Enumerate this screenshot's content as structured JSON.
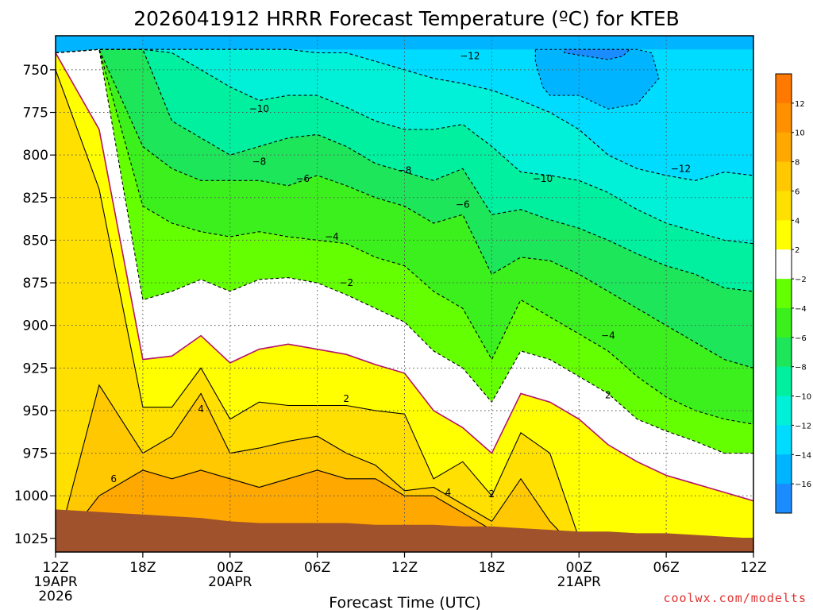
{
  "colors": {
    "c_neg16": "#1a8cff",
    "c_neg14": "#00b4ff",
    "c_neg12": "#00dcff",
    "c_neg10": "#00f0d8",
    "c_neg8": "#00f0a0",
    "c_neg6": "#1ee65a",
    "c_neg4": "#3cf01e",
    "c_neg2": "#64ff00",
    "c_0": "#ffffff",
    "c_2": "#ffff00",
    "c_4": "#ffe000",
    "c_6": "#ffc800",
    "c_8": "#ffa800",
    "c_10": "#ff9000",
    "c_12": "#ff7800",
    "ground": "#a0522d",
    "freezing_line": "#b4146e"
  },
  "chart_data": {
    "type": "heatmap",
    "title": "2026041912 HRRR Forecast Temperature (ºC) for KTEB",
    "xlabel": "Forecast Time (UTC)",
    "ylabel": "",
    "x_range_hours": [
      0,
      48
    ],
    "y_range_hpa": [
      730,
      1033
    ],
    "y_inverted": true,
    "y_ticks": [
      "750",
      "775",
      "800",
      "825",
      "850",
      "875",
      "900",
      "925",
      "950",
      "975",
      "1000",
      "1025"
    ],
    "x_ticks": [
      {
        "hour": 0,
        "label": "12Z",
        "sub1": "19APR",
        "sub2": "2026"
      },
      {
        "hour": 6,
        "label": "18Z",
        "sub1": "",
        "sub2": ""
      },
      {
        "hour": 12,
        "label": "00Z",
        "sub1": "20APR",
        "sub2": ""
      },
      {
        "hour": 18,
        "label": "06Z",
        "sub1": "",
        "sub2": ""
      },
      {
        "hour": 24,
        "label": "12Z",
        "sub1": "",
        "sub2": ""
      },
      {
        "hour": 30,
        "label": "18Z",
        "sub1": "",
        "sub2": ""
      },
      {
        "hour": 36,
        "label": "00Z",
        "sub1": "21APR",
        "sub2": ""
      },
      {
        "hour": 42,
        "label": "06Z",
        "sub1": "",
        "sub2": ""
      },
      {
        "hour": 48,
        "label": "12Z",
        "sub1": "",
        "sub2": ""
      }
    ],
    "colorbar": {
      "ticks": [
        "12",
        "10",
        "8",
        "6",
        "4",
        "2",
        "-2",
        "-4",
        "-6",
        "-8",
        "-10",
        "-12",
        "-14",
        "-16"
      ],
      "bands": [
        "c_12",
        "c_10",
        "c_8",
        "c_6",
        "c_4",
        "c_2",
        "c_0",
        "c_neg2",
        "c_neg4",
        "c_neg6",
        "c_neg8",
        "c_neg10",
        "c_neg12",
        "c_neg14",
        "c_neg16"
      ]
    },
    "isotherm_levels_hpa": {
      "hours": [
        0,
        3,
        6,
        8,
        10,
        12,
        14,
        16,
        18,
        20,
        22,
        24,
        26,
        28,
        30,
        32,
        34,
        36,
        38,
        40,
        42,
        44,
        46,
        48
      ],
      "p_6": [
        1033,
        1000,
        985,
        990,
        985,
        990,
        995,
        990,
        985,
        990,
        990,
        1000,
        1000,
        1010,
        1020,
        1025,
        1033,
        1033,
        1033,
        1033,
        1033,
        1033,
        1033,
        1033
      ],
      "p_4": [
        1033,
        935,
        975,
        965,
        940,
        975,
        972,
        968,
        965,
        975,
        982,
        997,
        995,
        1005,
        1015,
        990,
        1015,
        1033,
        1033,
        1033,
        1033,
        1033,
        1033,
        1033
      ],
      "p_2": [
        750,
        820,
        948,
        948,
        925,
        955,
        945,
        947,
        947,
        947,
        950,
        952,
        990,
        980,
        1000,
        963,
        975,
        1025,
        1025,
        1025,
        1025,
        1025,
        1025,
        1025
      ],
      "p_0": [
        740,
        785,
        920,
        918,
        906,
        922,
        914,
        911,
        914,
        917,
        923,
        928,
        950,
        960,
        975,
        940,
        945,
        955,
        970,
        980,
        988,
        993,
        998,
        1003
      ],
      "p_neg2": [
        740,
        738,
        885,
        880,
        873,
        880,
        873,
        872,
        875,
        882,
        890,
        898,
        915,
        925,
        945,
        915,
        920,
        930,
        940,
        955,
        962,
        968,
        975,
        975
      ],
      "p_neg4": [
        740,
        738,
        830,
        840,
        845,
        848,
        845,
        848,
        850,
        852,
        860,
        865,
        880,
        890,
        920,
        885,
        895,
        905,
        915,
        930,
        942,
        950,
        955,
        958
      ],
      "p_neg6": [
        740,
        738,
        795,
        808,
        815,
        815,
        815,
        818,
        812,
        818,
        825,
        830,
        840,
        835,
        870,
        860,
        862,
        870,
        880,
        890,
        900,
        910,
        920,
        925
      ],
      "p_neg8": [
        740,
        738,
        738,
        780,
        790,
        800,
        795,
        790,
        788,
        795,
        805,
        810,
        815,
        808,
        835,
        832,
        838,
        843,
        850,
        858,
        865,
        870,
        878,
        880
      ],
      "p_neg10": [
        740,
        738,
        738,
        740,
        750,
        760,
        768,
        765,
        765,
        772,
        780,
        785,
        785,
        782,
        795,
        810,
        812,
        815,
        822,
        832,
        840,
        845,
        850,
        852
      ],
      "p_neg12": [
        740,
        738,
        738,
        738,
        738,
        738,
        738,
        738,
        740,
        740,
        745,
        750,
        755,
        758,
        762,
        768,
        775,
        785,
        800,
        808,
        812,
        815,
        810,
        812
      ],
      "p_neg14": [
        740,
        738,
        738,
        738,
        738,
        738,
        738,
        738,
        738,
        738,
        738,
        738,
        738,
        738,
        738,
        738,
        738,
        738,
        738,
        738,
        738,
        738,
        738,
        738
      ]
    },
    "cold_pocket_neg14": {
      "hours": [
        33,
        34,
        36,
        38,
        40,
        41,
        41.5,
        40,
        38,
        36,
        34,
        33.5,
        33
      ],
      "p": [
        738,
        738,
        738,
        738,
        738,
        740,
        755,
        770,
        773,
        765,
        765,
        760,
        745
      ]
    },
    "cold_pocket_neg16": {
      "hours": [
        35,
        36,
        38,
        39.5,
        39,
        38,
        36.5,
        35
      ],
      "p": [
        738,
        738,
        738,
        738,
        742,
        744,
        742,
        740
      ]
    },
    "ground_surface_hpa": {
      "hours": [
        0,
        2,
        4,
        6,
        8,
        10,
        12,
        14,
        16,
        18,
        20,
        22,
        24,
        26,
        28,
        30,
        32,
        34,
        36,
        38,
        40,
        42,
        44,
        46,
        48
      ],
      "p": [
        1008,
        1009,
        1010,
        1011,
        1012,
        1013,
        1015,
        1016,
        1016,
        1016,
        1016,
        1017,
        1017,
        1017,
        1018,
        1018,
        1019,
        1020,
        1021,
        1021,
        1022,
        1022,
        1023,
        1024,
        1025
      ]
    },
    "contour_labels": [
      {
        "hour": 28.5,
        "p": 742,
        "text": "-12"
      },
      {
        "hour": 14,
        "p": 773,
        "text": "-10"
      },
      {
        "hour": 14,
        "p": 804,
        "text": "-8"
      },
      {
        "hour": 17,
        "p": 814,
        "text": "-6"
      },
      {
        "hour": 24,
        "p": 809,
        "text": "-8"
      },
      {
        "hour": 33.5,
        "p": 814,
        "text": "-10"
      },
      {
        "hour": 43,
        "p": 808,
        "text": "-12"
      },
      {
        "hour": 28,
        "p": 829,
        "text": "-6"
      },
      {
        "hour": 19,
        "p": 848,
        "text": "-4"
      },
      {
        "hour": 20,
        "p": 875,
        "text": "-2"
      },
      {
        "hour": 38,
        "p": 906,
        "text": "-4"
      },
      {
        "hour": 20,
        "p": 943,
        "text": "2"
      },
      {
        "hour": 38,
        "p": 941,
        "text": "2"
      },
      {
        "hour": 10,
        "p": 949,
        "text": "4"
      },
      {
        "hour": 27,
        "p": 998,
        "text": "4"
      },
      {
        "hour": 30,
        "p": 999,
        "text": "2"
      },
      {
        "hour": 4,
        "p": 990,
        "text": "6"
      }
    ]
  },
  "credit": "coolwx.com/modelts"
}
